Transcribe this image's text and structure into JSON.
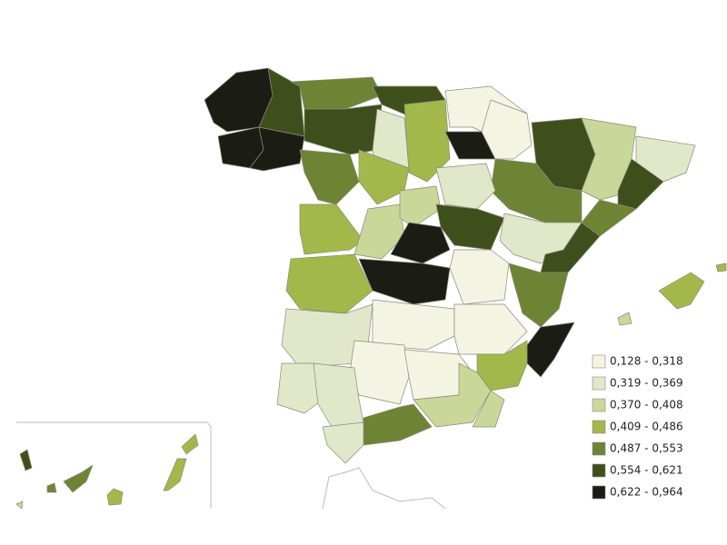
{
  "legend": {
    "items": [
      {
        "label": "0,128 - 0,318",
        "color": "#f4f4e3"
      },
      {
        "label": "0,319 - 0,369",
        "color": "#e1e7c9"
      },
      {
        "label": "0,370 - 0,408",
        "color": "#c9d799"
      },
      {
        "label": "0,409 - 0,486",
        "color": "#a3b84a"
      },
      {
        "label": "0,487 - 0,553",
        "color": "#6e8434"
      },
      {
        "label": "0,554 - 0,621",
        "color": "#3f4f1c"
      },
      {
        "label": "0,622 - 0,964",
        "color": "#1b1d15"
      }
    ]
  },
  "regions": [
    6,
    6,
    6,
    5,
    4,
    5,
    5,
    4,
    1,
    3,
    3,
    0,
    6,
    0,
    5,
    2,
    1,
    5,
    4,
    4,
    1,
    3,
    2,
    2,
    5,
    6,
    1,
    5,
    3,
    6,
    0,
    4,
    1,
    0,
    0,
    6,
    3,
    0,
    0,
    1,
    1,
    2,
    2,
    4,
    1,
    3,
    3,
    2,
    5,
    2,
    4,
    4,
    3,
    3,
    3
  ]
}
